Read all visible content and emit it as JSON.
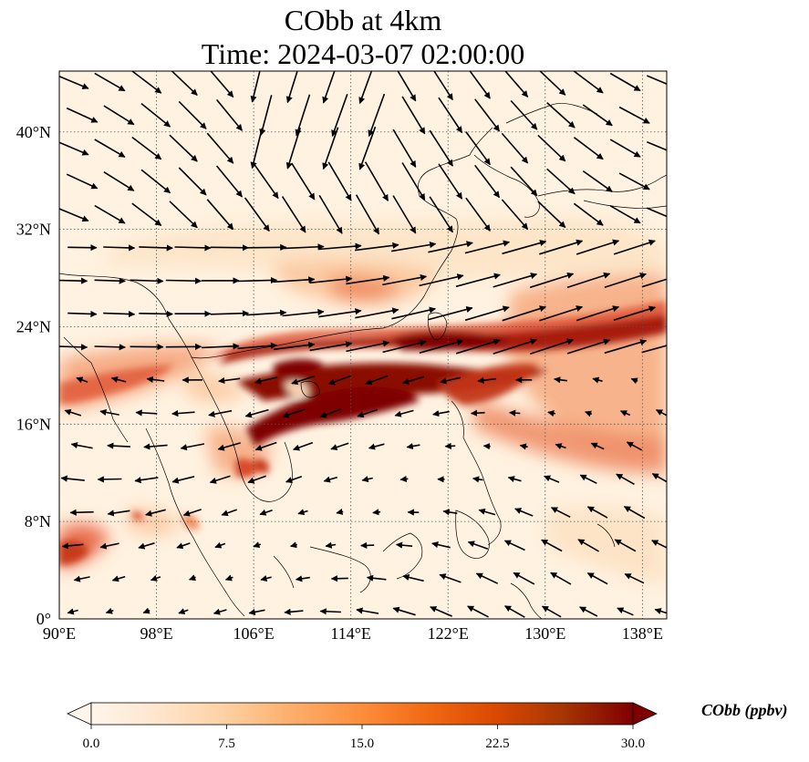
{
  "title": {
    "line1": "CObb at 4km",
    "line2": "Time: 2024-03-07 02:00:00"
  },
  "map": {
    "lon_range": [
      90,
      140
    ],
    "lat_range": [
      0,
      45
    ],
    "lon_ticks": [
      {
        "value": 90,
        "label": "90°E"
      },
      {
        "value": 98,
        "label": "98°E"
      },
      {
        "value": 106,
        "label": "106°E"
      },
      {
        "value": 114,
        "label": "114°E"
      },
      {
        "value": 122,
        "label": "122°E"
      },
      {
        "value": 130,
        "label": "130°E"
      },
      {
        "value": 138,
        "label": "138°E"
      }
    ],
    "lat_ticks": [
      {
        "value": 0,
        "label": "0°"
      },
      {
        "value": 8,
        "label": "8°N"
      },
      {
        "value": 16,
        "label": "16°N"
      },
      {
        "value": 24,
        "label": "24°N"
      },
      {
        "value": 32,
        "label": "32°N"
      },
      {
        "value": 40,
        "label": "40°N"
      }
    ],
    "gridlines": true,
    "field": "CObb",
    "background_color": "#fff2e0",
    "wind_vectors": true
  },
  "colorbar": {
    "label": "CObb (ppbv)",
    "min": 0,
    "max": 30,
    "ticks": [
      "0.0",
      "7.5",
      "15.0",
      "22.5",
      "30.0"
    ],
    "colors": [
      "#fff5eb",
      "#fee6ce",
      "#fdd0a2",
      "#fdae6b",
      "#fd8d3c",
      "#f16913",
      "#d94801",
      "#a63603",
      "#7f0000"
    ],
    "extend": "both"
  }
}
